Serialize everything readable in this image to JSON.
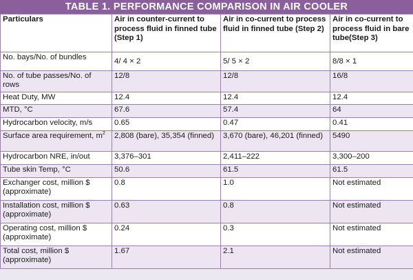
{
  "title": "TABLE 1. PERFORMANCE COMPARISON IN AIR COOLER",
  "headers": [
    "Particulars",
    "Air in counter-current to process fluid in finned tube (Step 1)",
    "Air in co-current to process fluid in finned tube (Step 2)",
    "Air in co-current to process fluid in bare tube(Step 3)"
  ],
  "rows": [
    {
      "label": "No. bays/No. of bundles",
      "values": [
        "4/ 4 × 2",
        "5/ 5 × 2",
        "8/8 × 1"
      ]
    },
    {
      "label": "No. of tube passes/No. of rows",
      "values": [
        "12/8",
        "12/8",
        "16/8"
      ]
    },
    {
      "label": "Heat Duty, MW",
      "values": [
        "12.4",
        "12.4",
        "12.4"
      ]
    },
    {
      "label": "MTD, °C",
      "values": [
        "67.6",
        "57.4",
        "64"
      ]
    },
    {
      "label": "Hydrocarbon velocity, m/s",
      "values": [
        "0.65",
        "0.47",
        "0.41"
      ]
    },
    {
      "label": "Surface area requirement, m",
      "label_sup": "2",
      "values": [
        "2,808 (bare), 35,354 (finned)",
        "3,670 (bare), 46,201 (finned)",
        "5490"
      ]
    },
    {
      "label": "Hydrocarbon NRE, in/out",
      "values": [
        "3,376–301",
        "2,411–222",
        "3,300–200"
      ]
    },
    {
      "label": "Tube skin Temp, °C",
      "values": [
        "50.6",
        "61.5",
        "61.5"
      ]
    },
    {
      "label": "Exchanger cost, million $ (approximate)",
      "values": [
        "0.8",
        "1.0",
        "Not estimated"
      ]
    },
    {
      "label": "Installation cost, million $ (approximate)",
      "values": [
        "0.63",
        "0.8",
        "Not estimated"
      ]
    },
    {
      "label": "Operating cost, million $ (approximate)",
      "values": [
        "0.24",
        "0.3",
        "Not estimated"
      ]
    },
    {
      "label": "Total cost, million $ (approximate)",
      "values": [
        "1.67",
        "2.1",
        "Not estimated"
      ]
    }
  ]
}
